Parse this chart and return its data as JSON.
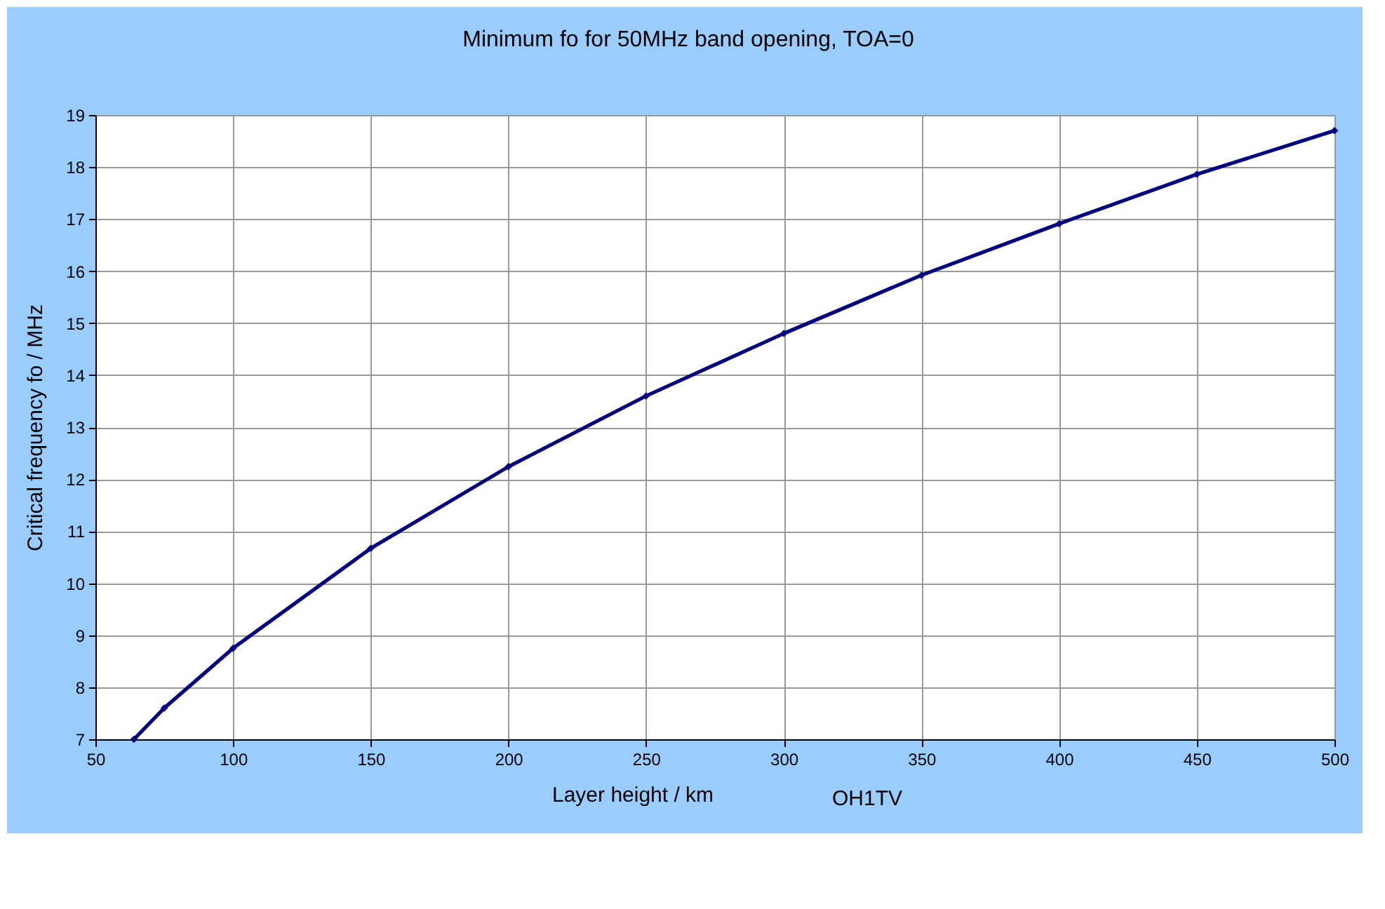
{
  "chart_data": {
    "type": "line",
    "title": "Minimum fo for 50MHz band opening, TOA=0",
    "xlabel": "Layer height  / km",
    "ylabel": "Critical frequency  fo  / MHz",
    "annotations": [
      "OH1TV"
    ],
    "x": [
      64,
      75,
      100,
      150,
      200,
      250,
      300,
      350,
      400,
      450,
      500
    ],
    "values": [
      7.0,
      7.6,
      8.75,
      10.67,
      12.24,
      13.6,
      14.8,
      15.92,
      16.91,
      17.86,
      18.7
    ],
    "color": "#000080",
    "xlim": [
      50,
      500
    ],
    "xticks": [
      50,
      100,
      150,
      200,
      250,
      300,
      350,
      400,
      450,
      500
    ],
    "ylim": [
      7,
      19
    ],
    "yticks": [
      7,
      8,
      9,
      10,
      11,
      12,
      13,
      14,
      15,
      16,
      17,
      18,
      19
    ],
    "grid": true,
    "marker": "diamond",
    "line_style": "solid"
  }
}
